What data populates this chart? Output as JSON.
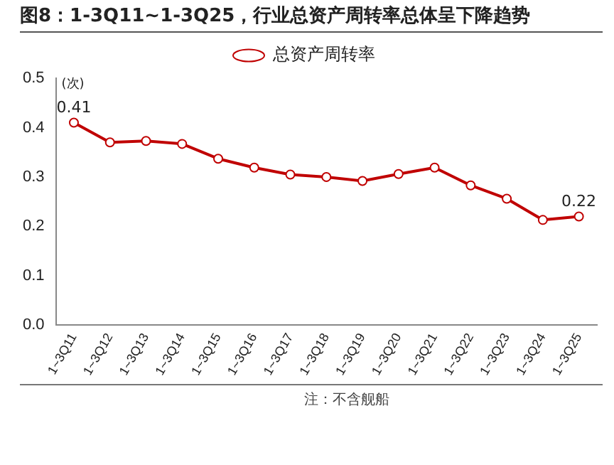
{
  "chart_data": {
    "type": "line",
    "title": "图8：1-3Q11~1-3Q25，行业总资产周转率总体呈下降趋势",
    "ylabel": "(次)",
    "categories": [
      "1~3Q11",
      "1~3Q12",
      "1~3Q13",
      "1~3Q14",
      "1~3Q15",
      "1~3Q16",
      "1~3Q17",
      "1~3Q18",
      "1~3Q19",
      "1~3Q20",
      "1~3Q21",
      "1~3Q22",
      "1~3Q23",
      "1~3Q24",
      "1~3Q25"
    ],
    "series": [
      {
        "name": "总资产周转率",
        "color": "#c00000",
        "values": [
          0.41,
          0.37,
          0.373,
          0.367,
          0.337,
          0.319,
          0.305,
          0.3,
          0.292,
          0.306,
          0.319,
          0.283,
          0.256,
          0.213,
          0.22
        ],
        "value_labels": [
          "0.41",
          null,
          null,
          null,
          null,
          null,
          null,
          null,
          null,
          null,
          null,
          null,
          null,
          null,
          "0.22"
        ]
      }
    ],
    "ylim": [
      0,
      0.5
    ],
    "yticks": [
      {
        "value": 0,
        "label": "0.0"
      },
      {
        "value": 0.1,
        "label": "0.1"
      },
      {
        "value": 0.2,
        "label": "0.2"
      },
      {
        "value": 0.3,
        "label": "0.3"
      },
      {
        "value": 0.4,
        "label": "0.4"
      },
      {
        "value": 0.5,
        "label": "0.5"
      }
    ],
    "grid": false,
    "legend": "top",
    "marker": "circle",
    "line_style": "solid",
    "annotations": [
      "注：不含舰船"
    ]
  }
}
